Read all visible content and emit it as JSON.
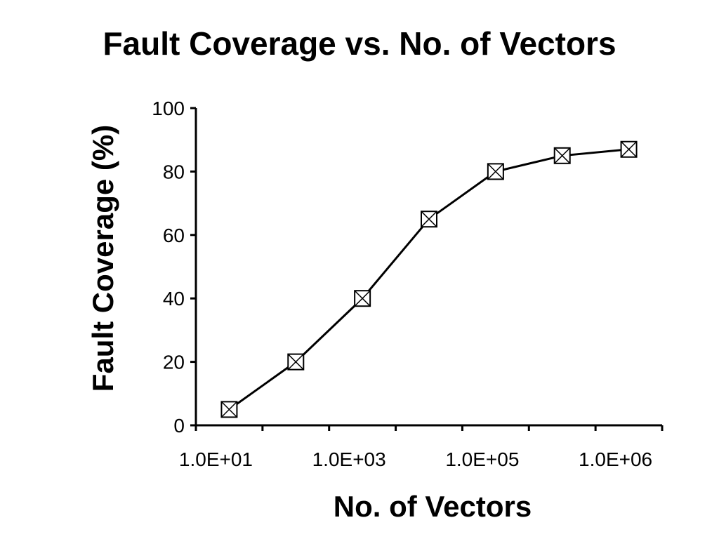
{
  "chart_data": {
    "type": "line",
    "title": "Fault Coverage vs. No. of Vectors",
    "xlabel": "No. of Vectors",
    "ylabel": "Fault Coverage (%)",
    "ylim": [
      0,
      100
    ],
    "y_ticks": [
      "0",
      "20",
      "40",
      "60",
      "80",
      "100"
    ],
    "x_tick_labels": [
      "1.0E+01",
      "1.0E+03",
      "1.0E+05",
      "1.0E+06"
    ],
    "series": [
      {
        "marker": "square-x",
        "color": "#000000",
        "points": [
          {
            "x": 2.2,
            "y": 5
          },
          {
            "x": 3.2,
            "y": 20
          },
          {
            "x": 4.2,
            "y": 40
          },
          {
            "x": 5.2,
            "y": 65
          },
          {
            "x": 6.2,
            "y": 80
          },
          {
            "x": 7.2,
            "y": 85
          },
          {
            "x": 8.2,
            "y": 87
          }
        ]
      }
    ],
    "grid": false,
    "legend": "none"
  }
}
